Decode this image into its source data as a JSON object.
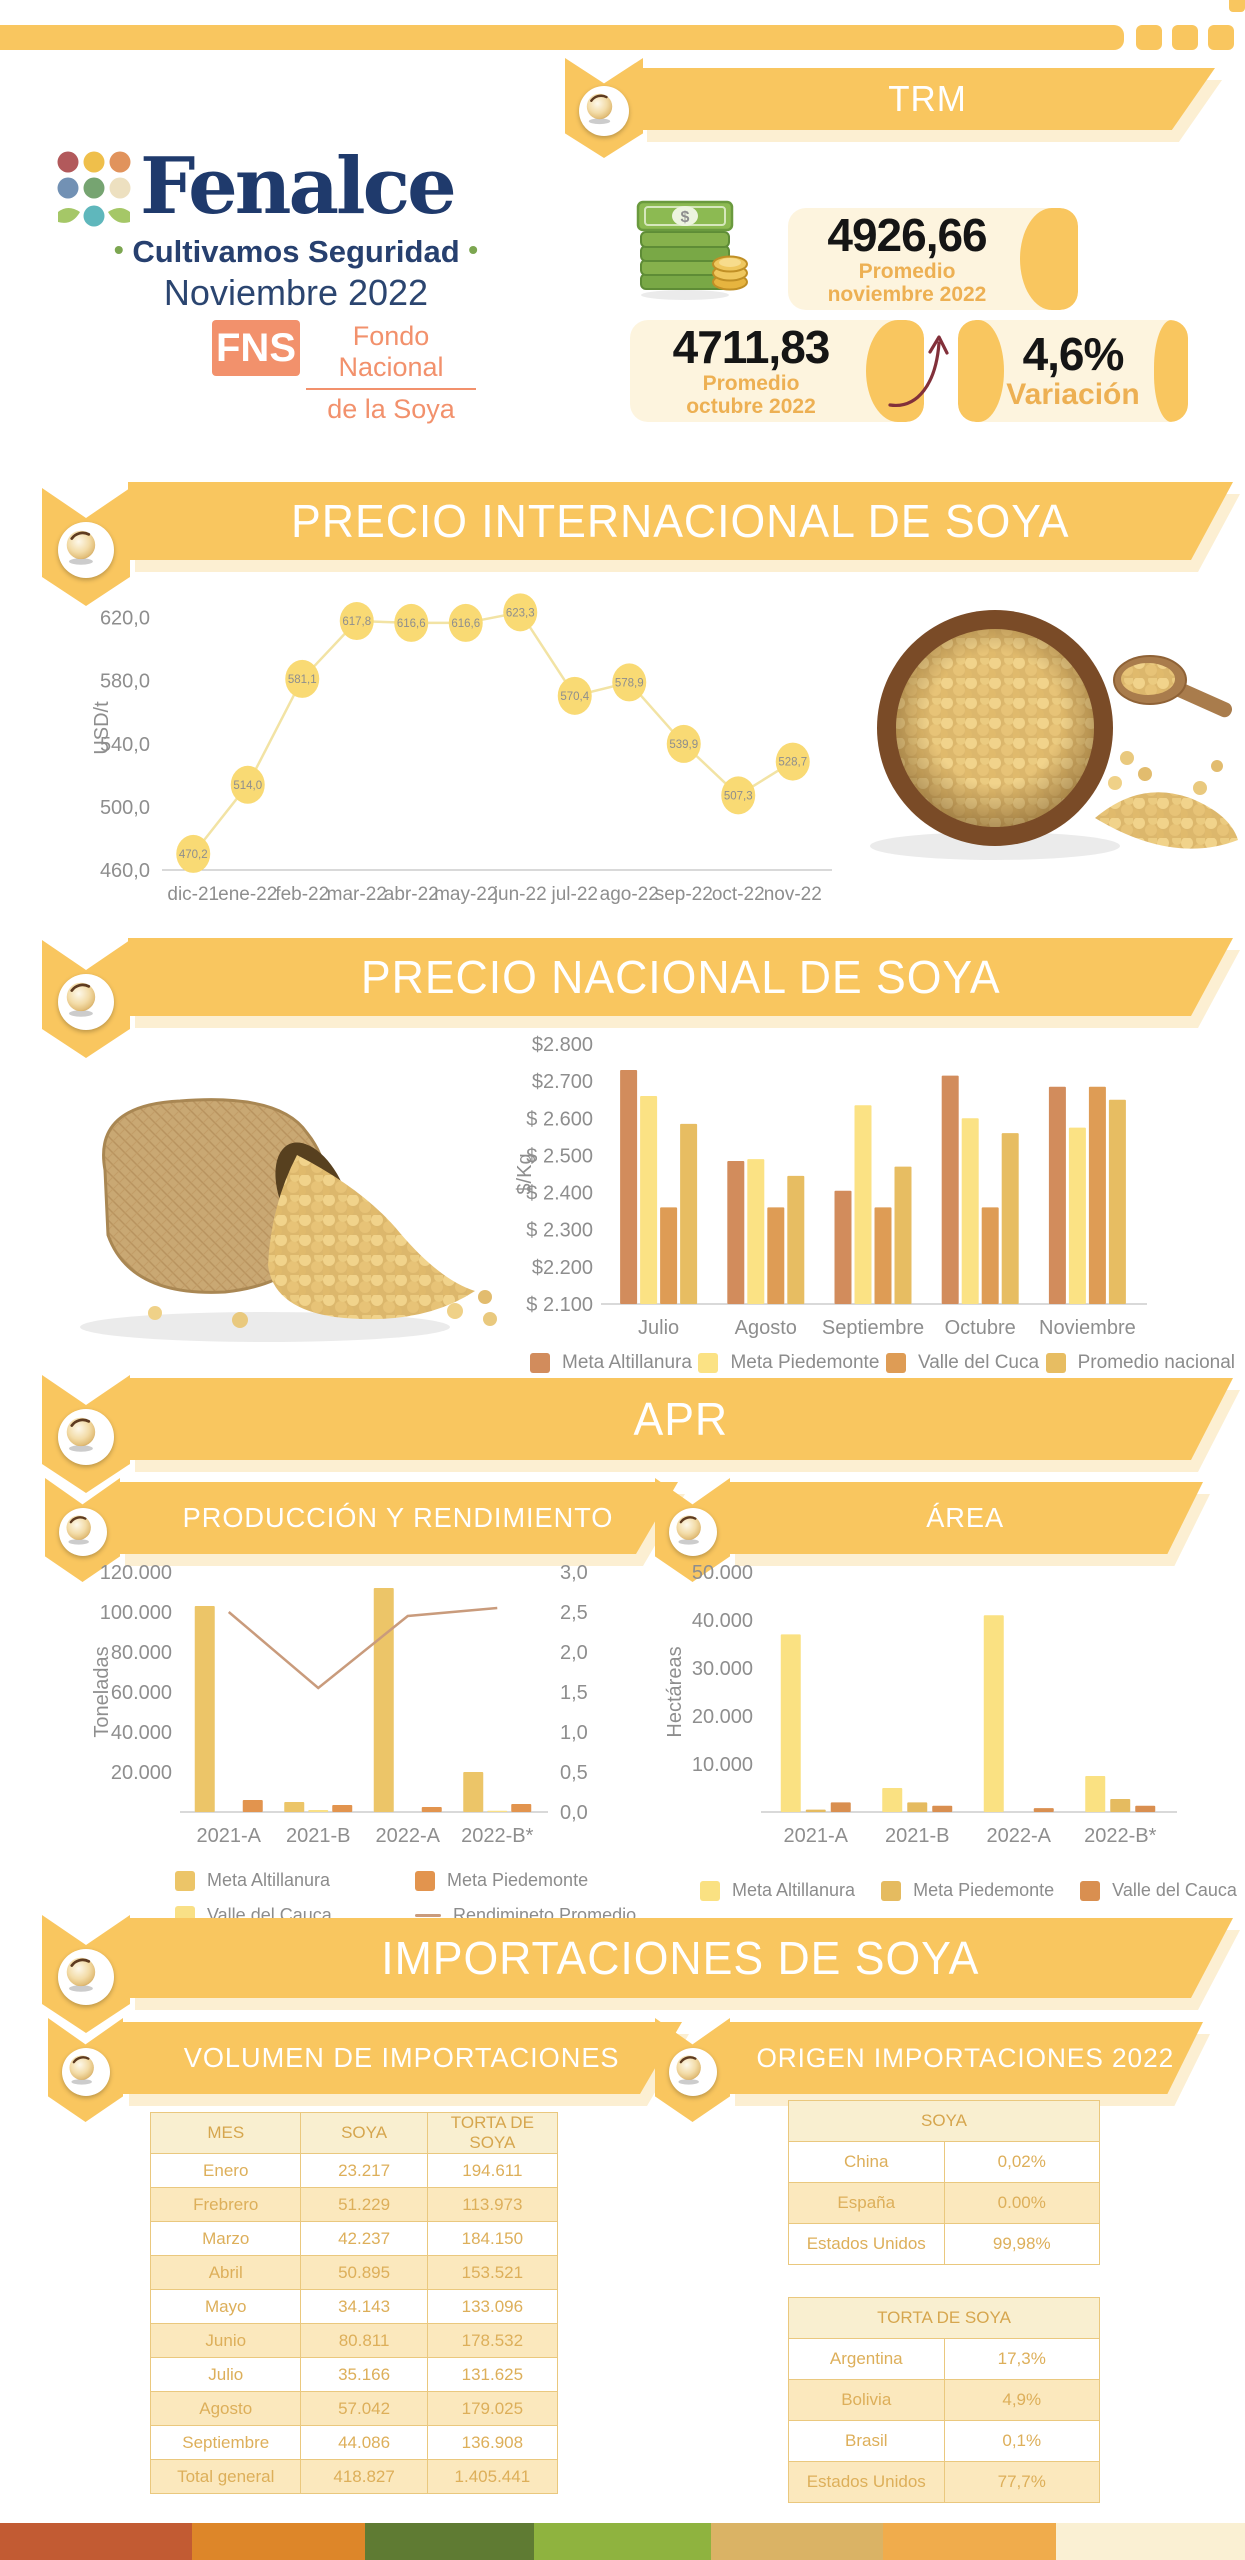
{
  "header": {
    "brand": "Fenalce",
    "tagline": "Cultivamos Seguridad",
    "tagline_bullet": "•",
    "issue_date": "Noviembre 2022",
    "fns_acronym": "FNS",
    "fns_line1": "Fondo Nacional",
    "fns_line2": "de la Soya"
  },
  "trm": {
    "title": "TRM",
    "current": {
      "value": "4926,66",
      "label1": "Promedio",
      "label2": "noviembre 2022"
    },
    "previous": {
      "value": "4711,83",
      "label1": "Promedio",
      "label2": "octubre 2022"
    },
    "variation": {
      "value": "4,6%",
      "label": "Variación"
    }
  },
  "sections": {
    "international": {
      "title": "PRECIO INTERNACIONAL DE SOYA"
    },
    "national": {
      "title": "PRECIO NACIONAL DE SOYA"
    },
    "apr": {
      "title": "APR",
      "production_title": "PRODUCCIÓN Y RENDIMIENTO",
      "area_title": "ÁREA"
    },
    "imports": {
      "title": "IMPORTACIONES DE SOYA",
      "volume_title": "VOLUMEN DE IMPORTACIONES",
      "origin_title": "ORIGEN IMPORTACIONES 2022"
    }
  },
  "colors": {
    "banner_yellow": "#F9C65F",
    "banner_shadow": "#FCEFD2",
    "navy": "#1F3A6C",
    "fns_orange": "#F2916C",
    "card_cream": "#FDF4DE",
    "accent_gold": "#EDB053",
    "arrow_maroon": "#82303A"
  },
  "chart_data": [
    {
      "id": "intl_price",
      "type": "line",
      "title": "PRECIO INTERNACIONAL DE SOYA",
      "ylabel": "USD/t",
      "x": [
        "dic-21",
        "ene-22",
        "feb-22",
        "mar-22",
        "abr-22",
        "may-22",
        "jun-22",
        "jul-22",
        "ago-22",
        "sep-22",
        "oct-22",
        "nov-22"
      ],
      "values": [
        470.2,
        514.0,
        581.1,
        617.8,
        616.6,
        616.6,
        623.3,
        570.4,
        578.9,
        539.9,
        507.3,
        528.7
      ],
      "point_labels": [
        "470,2",
        "514,0",
        "581,1",
        "617,8",
        "616,6",
        "616,6",
        "623,3",
        "570,4",
        "578,9",
        "539,9",
        "507,3",
        "528,7"
      ],
      "ylim": [
        460,
        640
      ],
      "yticks": [
        {
          "v": 460,
          "label": "460,0"
        },
        {
          "v": 500,
          "label": "500,0"
        },
        {
          "v": 540,
          "label": "540,0"
        },
        {
          "v": 580,
          "label": "580,0"
        },
        {
          "v": 620,
          "label": "620,0"
        }
      ],
      "line_color": "#F2E3A4",
      "marker_color": "#F9DA74"
    },
    {
      "id": "national_price",
      "type": "bar",
      "title": "PRECIO NACIONAL DE SOYA",
      "ylabel": "$/Kg",
      "categories": [
        "Julio",
        "Agosto",
        "Septiembre",
        "Octubre",
        "Noviembre"
      ],
      "series": [
        {
          "name": "Meta Altillanura",
          "color": "#D28C5C",
          "values": [
            2730,
            2485,
            2405,
            2715,
            2685
          ]
        },
        {
          "name": "Meta Piedemonte",
          "color": "#FBE284",
          "values": [
            2660,
            2490,
            2635,
            2600,
            2575
          ]
        },
        {
          "name": "Valle del Cuca",
          "color": "#DE9C55",
          "values": [
            2360,
            2360,
            2360,
            2360,
            2685
          ]
        },
        {
          "name": "Promedio nacional",
          "color": "#E7BD62",
          "values": [
            2585,
            2445,
            2470,
            2560,
            2650
          ]
        }
      ],
      "ylim": [
        2100,
        2800
      ],
      "yticks": [
        {
          "v": 2100,
          "label": "$ 2.100"
        },
        {
          "v": 2200,
          "label": "$2.200"
        },
        {
          "v": 2300,
          "label": "$ 2.300"
        },
        {
          "v": 2400,
          "label": "$ 2.400"
        },
        {
          "v": 2500,
          "label": "$ 2.500"
        },
        {
          "v": 2600,
          "label": "$ 2.600"
        },
        {
          "v": 2700,
          "label": "$2.700"
        },
        {
          "v": 2800,
          "label": "$2.800"
        }
      ]
    },
    {
      "id": "production",
      "type": "bar",
      "title": "PRODUCCIÓN Y RENDIMIENTO",
      "ylabel": "Toneladas",
      "categories": [
        "2021-A",
        "2021-B",
        "2022-A",
        "2022-B*"
      ],
      "series": [
        {
          "name": "Meta Altillanura",
          "color": "#ECC568",
          "values": [
            103000,
            5000,
            112000,
            20000
          ]
        },
        {
          "name": "Valle del Cauca",
          "color": "#F9E086",
          "values": [
            0,
            1000,
            0,
            600
          ]
        },
        {
          "name": "Meta Piedemonte",
          "color": "#E2944E",
          "values": [
            6000,
            3500,
            2500,
            4000
          ]
        }
      ],
      "ylim": [
        0,
        120000
      ],
      "yticks": [
        {
          "v": 20000,
          "label": "20.000"
        },
        {
          "v": 40000,
          "label": "40.000"
        },
        {
          "v": 60000,
          "label": "60.000"
        },
        {
          "v": 80000,
          "label": "80.000"
        },
        {
          "v": 100000,
          "label": "100.000"
        },
        {
          "v": 120000,
          "label": "120.000"
        }
      ],
      "y2lim": [
        0,
        3
      ],
      "y2ticks": [
        {
          "v": 0,
          "label": "0,0"
        },
        {
          "v": 0.5,
          "label": "0,5"
        },
        {
          "v": 1,
          "label": "1,0"
        },
        {
          "v": 1.5,
          "label": "1,5"
        },
        {
          "v": 2,
          "label": "2,0"
        },
        {
          "v": 2.5,
          "label": "2,5"
        },
        {
          "v": 3,
          "label": "3,0"
        }
      ],
      "line": {
        "name": "Rendimineto Promedio",
        "color": "#C99B7C",
        "values": [
          2.5,
          1.55,
          2.45,
          2.55
        ]
      }
    },
    {
      "id": "area",
      "type": "bar",
      "title": "ÁREA",
      "ylabel": "Hectáreas",
      "categories": [
        "2021-A",
        "2021-B",
        "2022-A",
        "2022-B*"
      ],
      "series": [
        {
          "name": "Meta Altillanura",
          "color": "#FAE182",
          "values": [
            37000,
            5000,
            41000,
            7500
          ]
        },
        {
          "name": "Meta Piedemonte",
          "color": "#E5BB60",
          "values": [
            500,
            2000,
            0,
            2700
          ]
        },
        {
          "name": "Valle del Cauca",
          "color": "#D98F50",
          "values": [
            2000,
            1300,
            800,
            1300
          ]
        }
      ],
      "ylim": [
        0,
        50000
      ],
      "yticks": [
        {
          "v": 10000,
          "label": "10.000"
        },
        {
          "v": 20000,
          "label": "20.000"
        },
        {
          "v": 30000,
          "label": "30.000"
        },
        {
          "v": 40000,
          "label": "40.000"
        },
        {
          "v": 50000,
          "label": "50.000"
        }
      ]
    }
  ],
  "legends": {
    "national": [
      {
        "label": "Meta Altillanura",
        "color": "#D28C5C"
      },
      {
        "label": "Meta Piedemonte",
        "color": "#FBE284"
      },
      {
        "label": "Valle del Cuca",
        "color": "#DE9C55"
      },
      {
        "label": "Promedio nacional",
        "color": "#E7BD62"
      }
    ],
    "production": [
      {
        "label": "Meta Altillanura",
        "color": "#ECC568"
      },
      {
        "label": "Meta Piedemonte",
        "color": "#E2944E"
      },
      {
        "label": "Valle del Cauca",
        "color": "#F9E086"
      },
      {
        "label": "Rendimineto Promedio",
        "color": "#C99B7C",
        "type": "line"
      }
    ],
    "area": [
      {
        "label": "Meta Altillanura",
        "color": "#FAE182"
      },
      {
        "label": "Meta Piedemonte",
        "color": "#E5BB60"
      },
      {
        "label": "Valle del Cauca",
        "color": "#D98F50"
      }
    ]
  },
  "tables": {
    "volume": {
      "headers": [
        "MES",
        "SOYA",
        "TORTA DE SOYA"
      ],
      "rows": [
        [
          "Enero",
          "23.217",
          "194.611"
        ],
        [
          "Frebrero",
          "51.229",
          "113.973"
        ],
        [
          "Marzo",
          "42.237",
          "184.150"
        ],
        [
          "Abril",
          "50.895",
          "153.521"
        ],
        [
          "Mayo",
          "34.143",
          "133.096"
        ],
        [
          "Junio",
          "80.811",
          "178.532"
        ],
        [
          "Julio",
          "35.166",
          "131.625"
        ],
        [
          "Agosto",
          "57.042",
          "179.025"
        ],
        [
          "Septiembre",
          "44.086",
          "136.908"
        ],
        [
          "Total general",
          "418.827",
          "1.405.441"
        ]
      ]
    },
    "origin_soya": {
      "title": "SOYA",
      "rows": [
        [
          "China",
          "0,02%"
        ],
        [
          "España",
          "0.00%"
        ],
        [
          "Estados Unidos",
          "99,98%"
        ]
      ]
    },
    "origin_torta": {
      "title": "TORTA DE SOYA",
      "rows": [
        [
          "Argentina",
          "17,3%"
        ],
        [
          "Bolivia",
          "4,9%"
        ],
        [
          "Brasil",
          "0,1%"
        ],
        [
          "Estados Unidos",
          "77,7%"
        ]
      ]
    }
  },
  "footer_palette": [
    "#C25B33",
    "#DD8629",
    "#5F7B33",
    "#8FB33F",
    "#DAB365",
    "#F0AC4C",
    "#FAF0D3"
  ]
}
